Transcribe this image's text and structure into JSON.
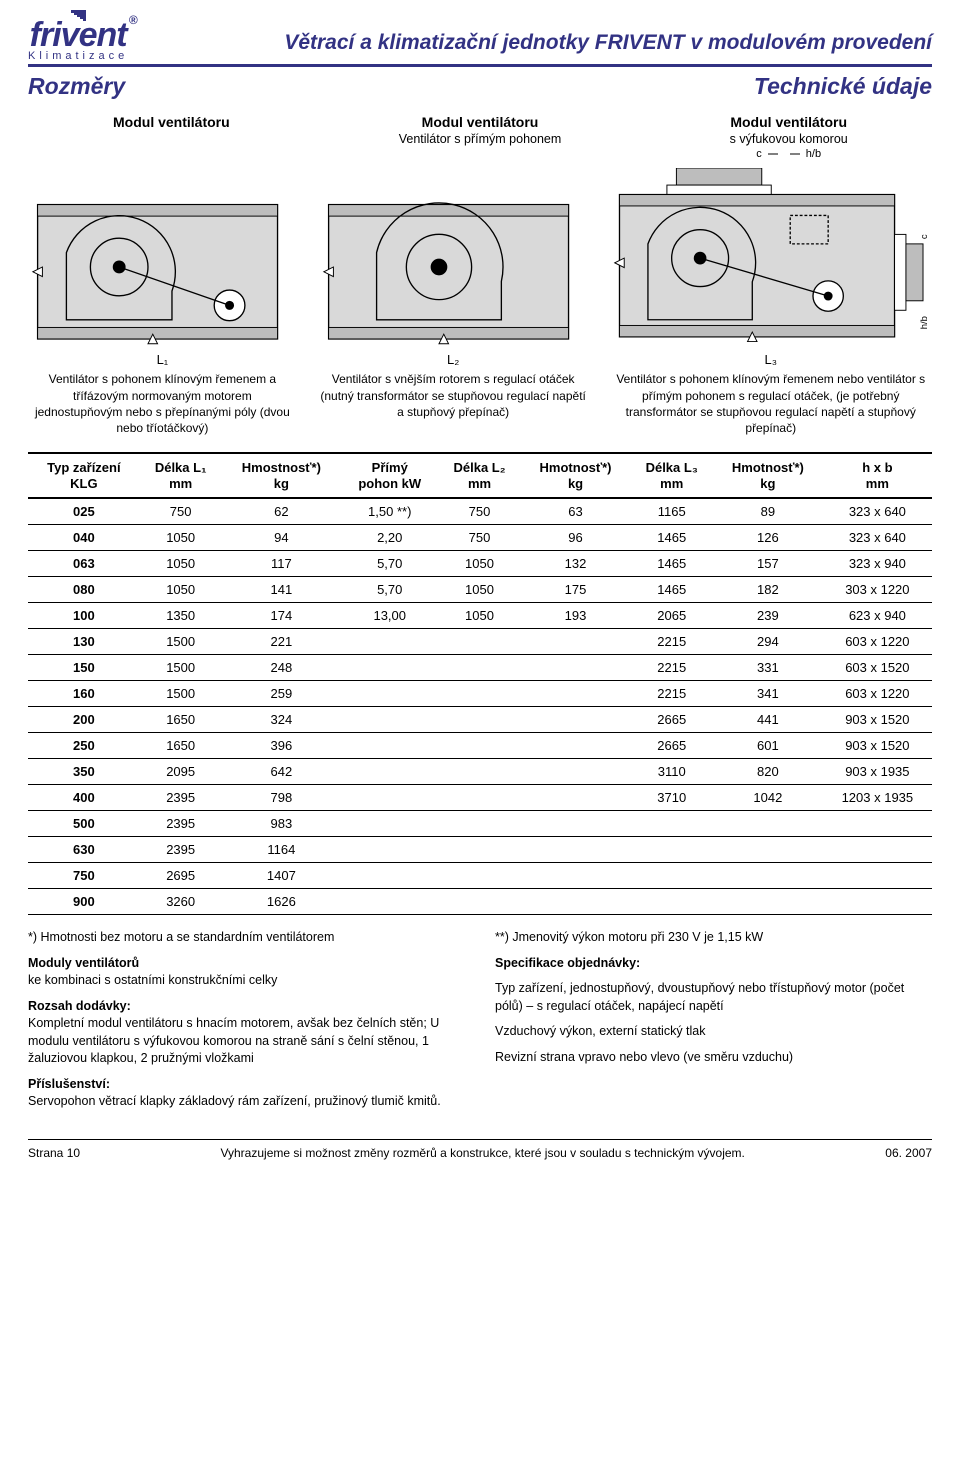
{
  "header": {
    "brand": "frivent",
    "brand_tag": "Klimatizace",
    "title": "Větrací a klimatizační jednotky FRIVENT v modulovém provedení",
    "sub_left": "Rozměry",
    "sub_right": "Technické údaje"
  },
  "modules": {
    "col1": {
      "title": "Modul ventilátoru",
      "sub": ""
    },
    "col2": {
      "title": "Modul ventilátoru",
      "sub": "Ventilátor s přímým pohonem"
    },
    "col3": {
      "title": "Modul ventilátoru",
      "sub": "s výfukovou komorou",
      "label_c": "c",
      "label_hb": "h/b"
    }
  },
  "l_labels": {
    "l1": "L₁",
    "l2": "L₂",
    "l3": "L₃"
  },
  "desc": {
    "d1": "Ventilátor s pohonem klínovým řemenem a třífázovým normovaným motorem jednostupňovým nebo s přepínanými póly (dvou nebo tříotáčkový)",
    "d2": "Ventilátor s vnějším rotorem s regulací otáček (nutný transformátor se stupňovou regulací napětí a stupňový přepínač)",
    "d3": "Ventilátor s pohonem klínovým řemenem nebo ventilátor s přímým pohonem s regulací otáček, (je potřebný transformátor se stupňovou regulací napětí a stupňový přepínač)"
  },
  "table": {
    "headers": [
      "Typ zařízení\nKLG",
      "Délka L₁\nmm",
      "Hmostnosť*)\nkg",
      "Přímý\npohon kW",
      "Délka L₂\nmm",
      "Hmotnosť*)\nkg",
      "Délka L₃\nmm",
      "Hmotnosť*)\nkg",
      "h x b\nmm"
    ],
    "rows": [
      [
        "025",
        "750",
        "62",
        "1,50 **)",
        "750",
        "63",
        "1165",
        "89",
        "323 x 640"
      ],
      [
        "040",
        "1050",
        "94",
        "2,20",
        "750",
        "96",
        "1465",
        "126",
        "323 x 640"
      ],
      [
        "063",
        "1050",
        "117",
        "5,70",
        "1050",
        "132",
        "1465",
        "157",
        "323 x 940"
      ],
      [
        "080",
        "1050",
        "141",
        "5,70",
        "1050",
        "175",
        "1465",
        "182",
        "303 x 1220"
      ],
      [
        "100",
        "1350",
        "174",
        "13,00",
        "1050",
        "193",
        "2065",
        "239",
        "623 x 940"
      ],
      [
        "130",
        "1500",
        "221",
        "",
        "",
        "",
        "2215",
        "294",
        "603 x 1220"
      ],
      [
        "150",
        "1500",
        "248",
        "",
        "",
        "",
        "2215",
        "331",
        "603 x 1520"
      ],
      [
        "160",
        "1500",
        "259",
        "",
        "",
        "",
        "2215",
        "341",
        "603 x 1220"
      ],
      [
        "200",
        "1650",
        "324",
        "",
        "",
        "",
        "2665",
        "441",
        "903 x 1520"
      ],
      [
        "250",
        "1650",
        "396",
        "",
        "",
        "",
        "2665",
        "601",
        "903 x 1520"
      ],
      [
        "350",
        "2095",
        "642",
        "",
        "",
        "",
        "3110",
        "820",
        "903 x 1935"
      ],
      [
        "400",
        "2395",
        "798",
        "",
        "",
        "",
        "3710",
        "1042",
        "1203 x 1935"
      ],
      [
        "500",
        "2395",
        "983",
        "",
        "",
        "",
        "",
        "",
        ""
      ],
      [
        "630",
        "2395",
        "1164",
        "",
        "",
        "",
        "",
        "",
        ""
      ],
      [
        "750",
        "2695",
        "1407",
        "",
        "",
        "",
        "",
        "",
        ""
      ],
      [
        "900",
        "3260",
        "1626",
        "",
        "",
        "",
        "",
        "",
        ""
      ]
    ]
  },
  "notes": {
    "left": {
      "l1": "*) Hmotnosti bez motoru a se standardním ventilátorem",
      "h1": "Moduly ventilátorů",
      "p1": "ke kombinaci s ostatními konstrukčními celky",
      "h2": "Rozsah dodávky:",
      "p2": "Kompletní modul ventilátoru s hnacím motorem, avšak bez čelních stěn; U modulu ventilátoru s výfukovou komorou na straně sání s čelní stěnou, 1 žaluziovou klapkou, 2 pružnými vložkami",
      "h3": "Příslušenství:",
      "p3": "Servopohon větrací klapky základový rám zařízení, pružinový tlumič kmitů."
    },
    "right": {
      "l1": "**) Jmenovitý výkon motoru při 230 V je 1,15 kW",
      "h1": "Specifikace objednávky:",
      "p1": "Typ zařízení, jednostupňový, dvoustupňový nebo třístupňový motor (počet pólů) – s regulací otáček, napájecí napětí",
      "p2": "Vzduchový výkon, externí statický tlak",
      "p3": "Revizní strana vpravo nebo vlevo (ve směru vzduchu)"
    }
  },
  "footer": {
    "left": "Strana 10",
    "center": "Vyhrazujeme si možnost změny rozměrů a konstrukce, které jsou v souladu s technickým vývojem.",
    "right": "06. 2007"
  },
  "diagram_style": {
    "stroke": "#000000",
    "fill_box": "#d9d9d9",
    "fill_hatch": "#bdbdbd",
    "stroke_width": 1.2
  }
}
